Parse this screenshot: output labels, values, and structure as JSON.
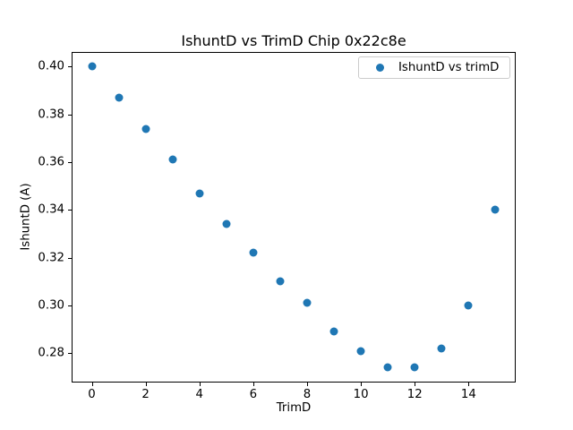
{
  "figure": {
    "title": "IshuntD vs TrimD Chip 0x22c8e",
    "background_color": "#ffffff",
    "text_color": "#000000"
  },
  "chart_data": {
    "type": "scatter",
    "title": "IshuntD vs TrimD Chip 0x22c8e",
    "xlabel": "TrimD",
    "ylabel": "IshuntD (A)",
    "x": [
      0,
      1,
      2,
      3,
      4,
      5,
      6,
      7,
      8,
      9,
      10,
      11,
      12,
      13,
      14,
      15
    ],
    "series": [
      {
        "name": "IshuntD vs trimD",
        "color": "#1f77b4",
        "values": [
          0.4,
          0.387,
          0.374,
          0.361,
          0.347,
          0.334,
          0.322,
          0.31,
          0.301,
          0.289,
          0.281,
          0.274,
          0.274,
          0.282,
          0.3,
          0.34
        ]
      }
    ],
    "xlim": [
      -0.75,
      15.75
    ],
    "ylim": [
      0.2677,
      0.4063
    ],
    "xticks": [
      0,
      2,
      4,
      6,
      8,
      10,
      12,
      14
    ],
    "xtick_labels": [
      "0",
      "2",
      "4",
      "6",
      "8",
      "10",
      "12",
      "14"
    ],
    "yticks": [
      0.28,
      0.3,
      0.32,
      0.34,
      0.36,
      0.38,
      0.4
    ],
    "ytick_labels": [
      "0.28",
      "0.30",
      "0.32",
      "0.34",
      "0.36",
      "0.38",
      "0.40"
    ],
    "grid": false,
    "legend": {
      "position": "upper right",
      "entries": [
        "IshuntD vs trimD"
      ],
      "marker_color": "#1f77b4"
    }
  }
}
